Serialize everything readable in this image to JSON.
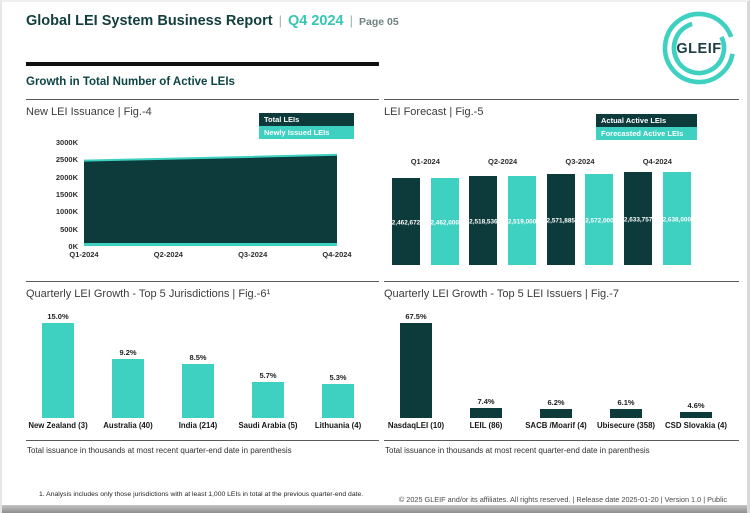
{
  "header": {
    "title": "Global LEI System Business Report",
    "separator": "|",
    "period": "Q4 2024",
    "page_label": "Page 05",
    "logo_text": "GLEIF"
  },
  "section_title": "Growth in Total Number of Active LEIs",
  "colors": {
    "dark_teal": "#0d3a3a",
    "teal": "#3ed0c0"
  },
  "chart_data": [
    {
      "id": "fig4",
      "type": "area",
      "title": "New LEI Issuance | Fig.-4",
      "legend": [
        {
          "label": "Total LEIs",
          "color": "#0d3a3a"
        },
        {
          "label": "Newly Issued LEIs",
          "color": "#3ed0c0"
        }
      ],
      "x": [
        "Q1-2024",
        "Q2-2024",
        "Q3-2024",
        "Q4-2024"
      ],
      "series": [
        {
          "name": "Total LEIs",
          "color": "#0d3a3a",
          "values": [
            2462672,
            2518536,
            2571885,
            2633757
          ]
        }
      ],
      "newly_issued_note": "Newly Issued LEIs render as a thin teal band near zero",
      "yticks": [
        "3000K",
        "2500K",
        "2000K",
        "1500K",
        "1000K",
        "500K",
        "0K"
      ],
      "ylim": [
        0,
        3000000
      ],
      "legend_position": "top-right"
    },
    {
      "id": "fig5",
      "type": "bar",
      "title": "LEI Forecast | Fig.-5",
      "legend": [
        {
          "label": "Actual Active LEIs",
          "color": "#0d3a3a"
        },
        {
          "label": "Forecasted Active LEIs",
          "color": "#3ed0c0"
        }
      ],
      "categories": [
        "Q1-2024",
        "Q2-2024",
        "Q3-2024",
        "Q4-2024"
      ],
      "series": [
        {
          "name": "Actual Active LEIs",
          "color": "#0d3a3a",
          "values": [
            2462672,
            2518536,
            2571885,
            2633757
          ],
          "labels": [
            "2,462,672",
            "2,518,536",
            "2,571,885",
            "2,633,757"
          ]
        },
        {
          "name": "Forecasted Active LEIs",
          "color": "#3ed0c0",
          "values": [
            2462000,
            2519000,
            2572000,
            2638000
          ],
          "labels": [
            "2,462,000",
            "2,519,000",
            "2,572,000",
            "2,638,000"
          ]
        }
      ],
      "value_labels_inside_bars": true,
      "legend_position": "top-right"
    },
    {
      "id": "fig6",
      "type": "bar",
      "title": "Quarterly LEI Growth - Top 5 Jurisdictions | Fig.-6¹",
      "categories": [
        "New Zealand (3)",
        "Australia (40)",
        "India (214)",
        "Saudi Arabia (5)",
        "Lithuania (4)"
      ],
      "values": [
        15.0,
        9.2,
        8.5,
        5.7,
        5.3
      ],
      "value_labels": [
        "15.0%",
        "9.2%",
        "8.5%",
        "5.7%",
        "5.3%"
      ],
      "bar_color": "#3ed0c0",
      "caption": "Total issuance in thousands at most recent quarter-end date in parenthesis"
    },
    {
      "id": "fig7",
      "type": "bar",
      "title": "Quarterly LEI Growth - Top 5 LEI Issuers | Fig.-7",
      "categories": [
        "NasdaqLEI (10)",
        "LEIL (86)",
        "SACB /Moarif (4)",
        "Ubisecure (358)",
        "CSD Slovakia (4)"
      ],
      "values": [
        67.5,
        7.4,
        6.2,
        6.1,
        4.6
      ],
      "value_labels": [
        "67.5%",
        "7.4%",
        "6.2%",
        "6.1%",
        "4.6%"
      ],
      "bar_color": "#0d3a3a",
      "caption": "Total issuance in thousands at most recent quarter-end date in parenthesis"
    }
  ],
  "footnote": "1. Analysis includes only those jurisdictions with at least 1,000 LEIs in total at the previous quarter-end date.",
  "footer": "© 2025 GLEIF and/or its affiliates. All rights reserved. | Release date 2025-01-20 | Version 1.0 | Public"
}
